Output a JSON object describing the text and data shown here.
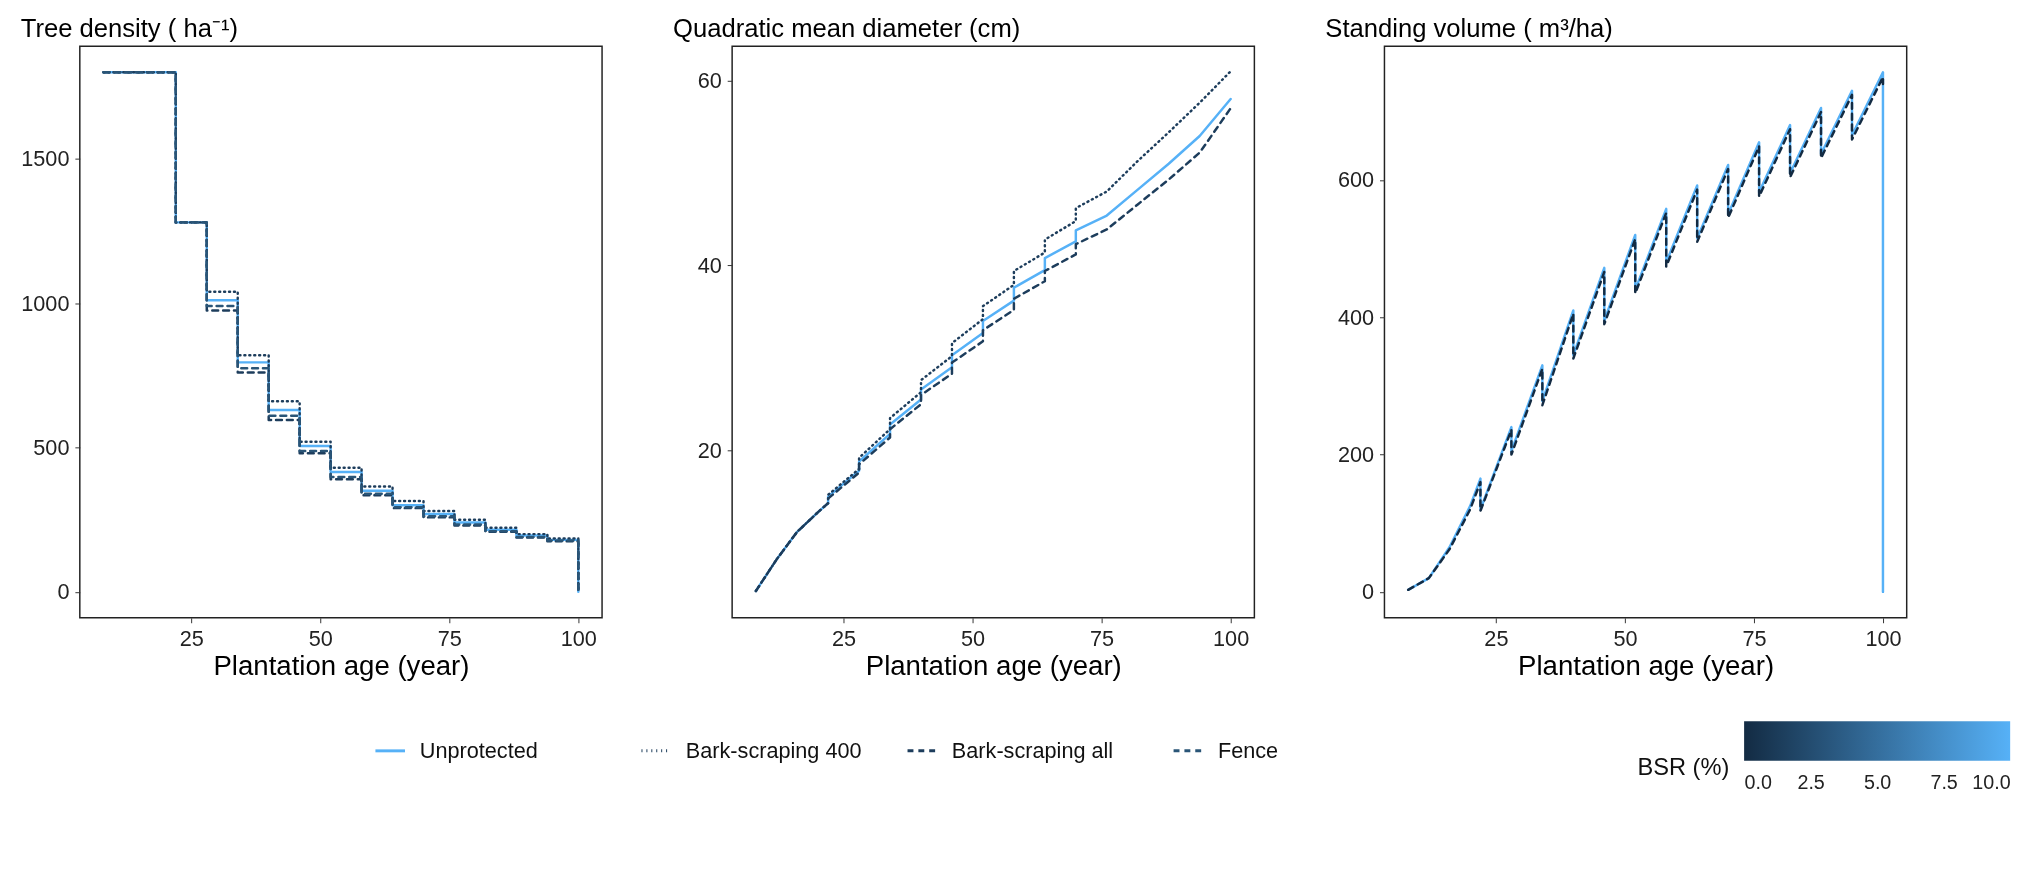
{
  "chart_data": [
    {
      "type": "step",
      "title": "Tree density ( ha⁻¹)",
      "xlabel": "Plantation age (year)",
      "x": [
        8,
        22,
        28,
        34,
        40,
        46,
        52,
        58,
        64,
        70,
        76,
        82,
        88,
        94,
        100
      ],
      "xlim": [
        3.4,
        104.6
      ],
      "xticks": [
        25,
        50,
        75,
        100
      ],
      "ylim": [
        -90,
        1890
      ],
      "yticks": [
        0,
        500,
        1000,
        1500
      ],
      "grid": false,
      "legend": "bottom",
      "series": [
        {
          "name": "Unprotected",
          "color": "#56b1f7",
          "line_style": "solid",
          "values": [
            1800,
            1280,
            1010,
            795,
            630,
            505,
            415,
            350,
            300,
            270,
            240,
            215,
            195,
            180,
            0
          ]
        },
        {
          "name": "Bark-scraping 400",
          "color": "#1d3d5c",
          "line_style": "dotted",
          "values": [
            1800,
            1280,
            1040,
            820,
            660,
            520,
            430,
            365,
            315,
            280,
            250,
            222,
            200,
            185,
            0
          ]
        },
        {
          "name": "Bark-scraping all",
          "color": "#1d3d5c",
          "line_style": "dashed",
          "values": [
            1800,
            1280,
            975,
            760,
            595,
            480,
            390,
            335,
            290,
            258,
            230,
            208,
            188,
            175,
            0
          ]
        },
        {
          "name": "Fence",
          "color": "#2a5577",
          "line_style": "dashed",
          "values": [
            1800,
            1280,
            990,
            775,
            610,
            488,
            398,
            340,
            293,
            262,
            233,
            210,
            190,
            178,
            0
          ]
        }
      ]
    },
    {
      "type": "line",
      "title": "Quadratic mean diameter (cm)",
      "xlabel": "Plantation age (year)",
      "xlim": [
        3.4,
        104.6
      ],
      "xticks": [
        25,
        50,
        75,
        100
      ],
      "ylim": [
        1.9,
        63.7
      ],
      "yticks": [
        20,
        40,
        60
      ],
      "grid": false,
      "x": [
        8,
        12,
        16,
        20,
        22,
        22,
        28,
        28,
        34,
        34,
        40,
        40,
        46,
        46,
        52,
        52,
        58,
        58,
        64,
        64,
        70,
        70,
        76,
        82,
        88,
        94,
        100
      ],
      "series": [
        {
          "color": "#56b1f7",
          "line_style": "solid",
          "values": [
            4.8,
            8.2,
            11.2,
            13.3,
            14.3,
            15,
            17.8,
            18.8,
            21.8,
            22.8,
            25.5,
            26.6,
            29,
            30.3,
            32.7,
            34,
            36.2,
            37.6,
            39.5,
            40.8,
            42.6,
            43.8,
            45.4,
            48.2,
            51,
            54,
            58
          ]
        },
        {
          "color": "#1d3d5c",
          "line_style": "dotted",
          "values": [
            4.8,
            8.2,
            11.2,
            13.3,
            14.3,
            15.2,
            18,
            19.2,
            22.3,
            23.5,
            26.3,
            27.6,
            30.2,
            31.6,
            34.2,
            35.6,
            37.9,
            39.4,
            41.4,
            42.8,
            44.8,
            46.2,
            48,
            51.3,
            54.4,
            57.6,
            61
          ]
        },
        {
          "color": "#1d3d5c",
          "line_style": "dashed",
          "values": [
            4.8,
            8.2,
            11.2,
            13.3,
            14.3,
            14.8,
            17.6,
            18.5,
            21.4,
            22.3,
            25,
            26,
            28.3,
            29.5,
            31.8,
            33,
            35.2,
            36.4,
            38.3,
            39.4,
            41.2,
            42.3,
            43.9,
            46.6,
            49.3,
            52.2,
            57
          ]
        }
      ]
    },
    {
      "type": "line",
      "title": "Standing volume ( m³/ha)",
      "xlabel": "Plantation age (year)",
      "xlim": [
        3.4,
        104.6
      ],
      "xticks": [
        25,
        50,
        75,
        100
      ],
      "ylim": [
        -37.8,
        794.8
      ],
      "yticks": [
        0,
        200,
        400,
        600
      ],
      "grid": false,
      "clabel": "BSR (%)",
      "clim": [
        0,
        10
      ],
      "cticks": [
        {
          "value": 0,
          "label": "0.0"
        },
        {
          "value": 2.5,
          "label": "2.5"
        },
        {
          "value": 5,
          "label": "5.0"
        },
        {
          "value": 7.5,
          "label": "7.5"
        },
        {
          "value": 10,
          "label": "10.0"
        }
      ],
      "x": [
        8,
        12,
        16,
        20,
        22,
        22,
        28,
        28,
        34,
        34,
        40,
        40,
        46,
        46,
        52,
        52,
        58,
        58,
        64,
        64,
        70,
        70,
        76,
        76,
        82,
        82,
        88,
        88,
        94,
        94,
        100,
        100
      ],
      "series": [
        {
          "color": "#56b1f7",
          "line_style": "solid",
          "values": [
            3,
            20,
            65,
            125,
            165,
            120,
            240,
            205,
            330,
            278,
            410,
            345,
            472,
            395,
            520,
            440,
            558,
            480,
            592,
            515,
            622,
            550,
            655,
            582,
            680,
            610,
            705,
            638,
            730,
            665,
            757,
            0
          ]
        },
        {
          "color": "#132b43",
          "line_style": "dashed",
          "values": [
            3,
            20,
            62,
            120,
            160,
            118,
            236,
            200,
            325,
            272,
            405,
            340,
            466,
            390,
            514,
            435,
            552,
            474,
            586,
            510,
            616,
            545,
            649,
            576,
            674,
            604,
            699,
            632,
            724,
            659,
            750,
            740
          ]
        }
      ]
    }
  ]
}
